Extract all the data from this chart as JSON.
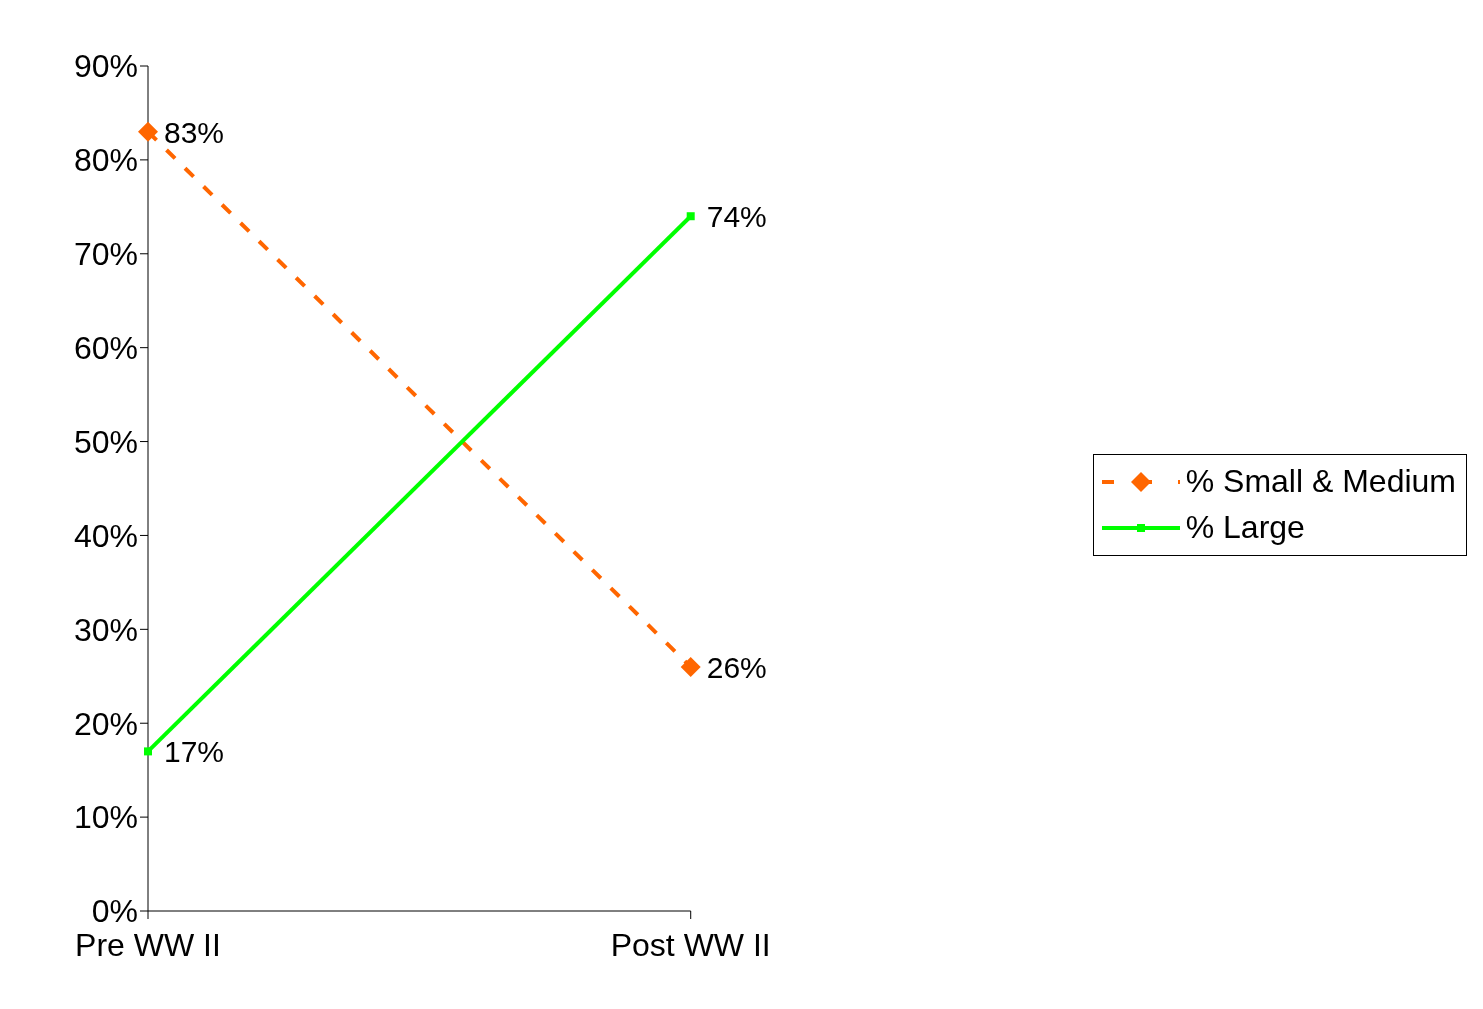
{
  "chart_data": {
    "type": "line",
    "categories": [
      "Pre WW II",
      "Post WW II"
    ],
    "series": [
      {
        "name": "% Small & Medium",
        "color": "#ff6600",
        "values": [
          83,
          26
        ],
        "value_labels": [
          "83%",
          "26%"
        ],
        "marker": "diamond",
        "line_style": "dashed"
      },
      {
        "name": "% Large",
        "color": "#00ff00",
        "values": [
          17,
          74
        ],
        "value_labels": [
          "17%",
          "74%"
        ],
        "marker": "square",
        "line_style": "solid"
      }
    ],
    "ylim": [
      0,
      90
    ],
    "yticks": [
      {
        "value": 0,
        "label": "0%"
      },
      {
        "value": 10,
        "label": "10%"
      },
      {
        "value": 20,
        "label": "20%"
      },
      {
        "value": 30,
        "label": "30%"
      },
      {
        "value": 40,
        "label": "40%"
      },
      {
        "value": 50,
        "label": "50%"
      },
      {
        "value": 60,
        "label": "60%"
      },
      {
        "value": 70,
        "label": "70%"
      },
      {
        "value": 80,
        "label": "80%"
      },
      {
        "value": 90,
        "label": "90%"
      }
    ],
    "grid": false,
    "legend": "right"
  }
}
